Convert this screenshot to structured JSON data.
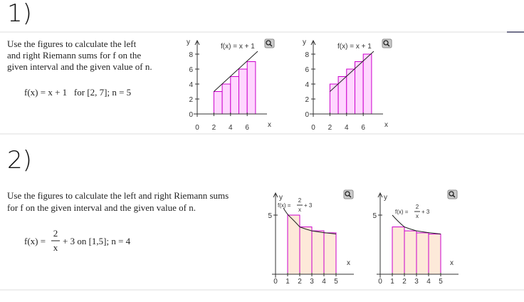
{
  "problems": [
    {
      "label": "1)",
      "text": [
        "Use the figures to calculate the left",
        "and right Riemann sums for f on the",
        "given interval and the given value of n."
      ],
      "formula": "f(x) = x + 1   for [2, 7]; n = 5",
      "figures": [
        {
          "y_label": "y",
          "x_label": "x",
          "title": "f(x) = x + 1",
          "xticks": [
            "0",
            "2",
            "4",
            "6"
          ],
          "yticks": [
            "0",
            "2",
            "4",
            "6",
            "8"
          ]
        },
        {
          "y_label": "y",
          "x_label": "x",
          "title": "f(x) = x + 1",
          "xticks": [
            "0",
            "2",
            "4",
            "6"
          ],
          "yticks": [
            "0",
            "2",
            "4",
            "6",
            "8"
          ]
        }
      ]
    },
    {
      "label": "2)",
      "text": [
        "Use the figures to calculate the left and right Riemann sums",
        "for f on the given interval and the given value of n."
      ],
      "formula": {
        "lhs": "f(x) =",
        "numerator": "2",
        "denominator": "x",
        "rest": "+ 3 on [1,5]; n = 4"
      },
      "figures": [
        {
          "y_label": "y",
          "x_label": "x",
          "title": {
            "lhs": "f(x) =",
            "numerator": "2",
            "denominator": "x",
            "rest": "+ 3"
          },
          "xticks": [
            "0",
            "1",
            "2",
            "3",
            "4",
            "5"
          ],
          "yticks": [
            "5"
          ]
        },
        {
          "y_label": "y",
          "x_label": "x",
          "title": {
            "lhs": "f(x) =",
            "numerator": "2",
            "denominator": "x",
            "rest": "+ 3"
          },
          "xticks": [
            "0",
            "1",
            "2",
            "3",
            "4",
            "5"
          ],
          "yticks": [
            "5"
          ]
        }
      ]
    }
  ]
}
